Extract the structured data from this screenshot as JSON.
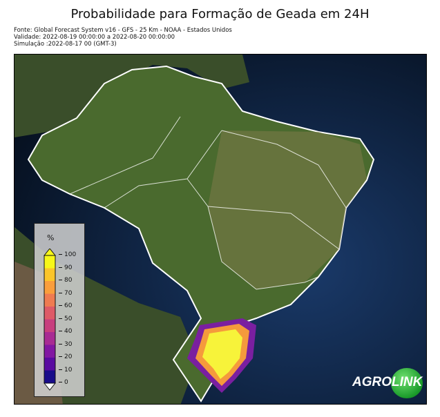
{
  "title": "Probabilidade para Formação de Geada em 24H",
  "meta": {
    "source": "Fonte: Global Forecast System v16 - GFS - 25 Km - NOAA - Estados Unidos",
    "validity": "Validade: 2022-08-19 00:00:00 a 2022-08-20 00:00:00",
    "simulation": "Simulação :2022-08-17 00 (GMT-3)"
  },
  "legend": {
    "unit": "%",
    "ticks": [
      "100",
      "90",
      "80",
      "70",
      "60",
      "50",
      "40",
      "30",
      "20",
      "10",
      "0"
    ],
    "colors": [
      "#f7f719",
      "#fbc52a",
      "#fa9e3c",
      "#ef7b51",
      "#de5a67",
      "#c73e7e",
      "#a82a93",
      "#8216a2",
      "#5a0aa0",
      "#1a0c8a"
    ]
  },
  "logo": {
    "left": "AGRO",
    "right": "LINK"
  },
  "colors": {
    "ocean": "#0c1a38",
    "land": "#3d5a28",
    "border": "#ffffff"
  }
}
